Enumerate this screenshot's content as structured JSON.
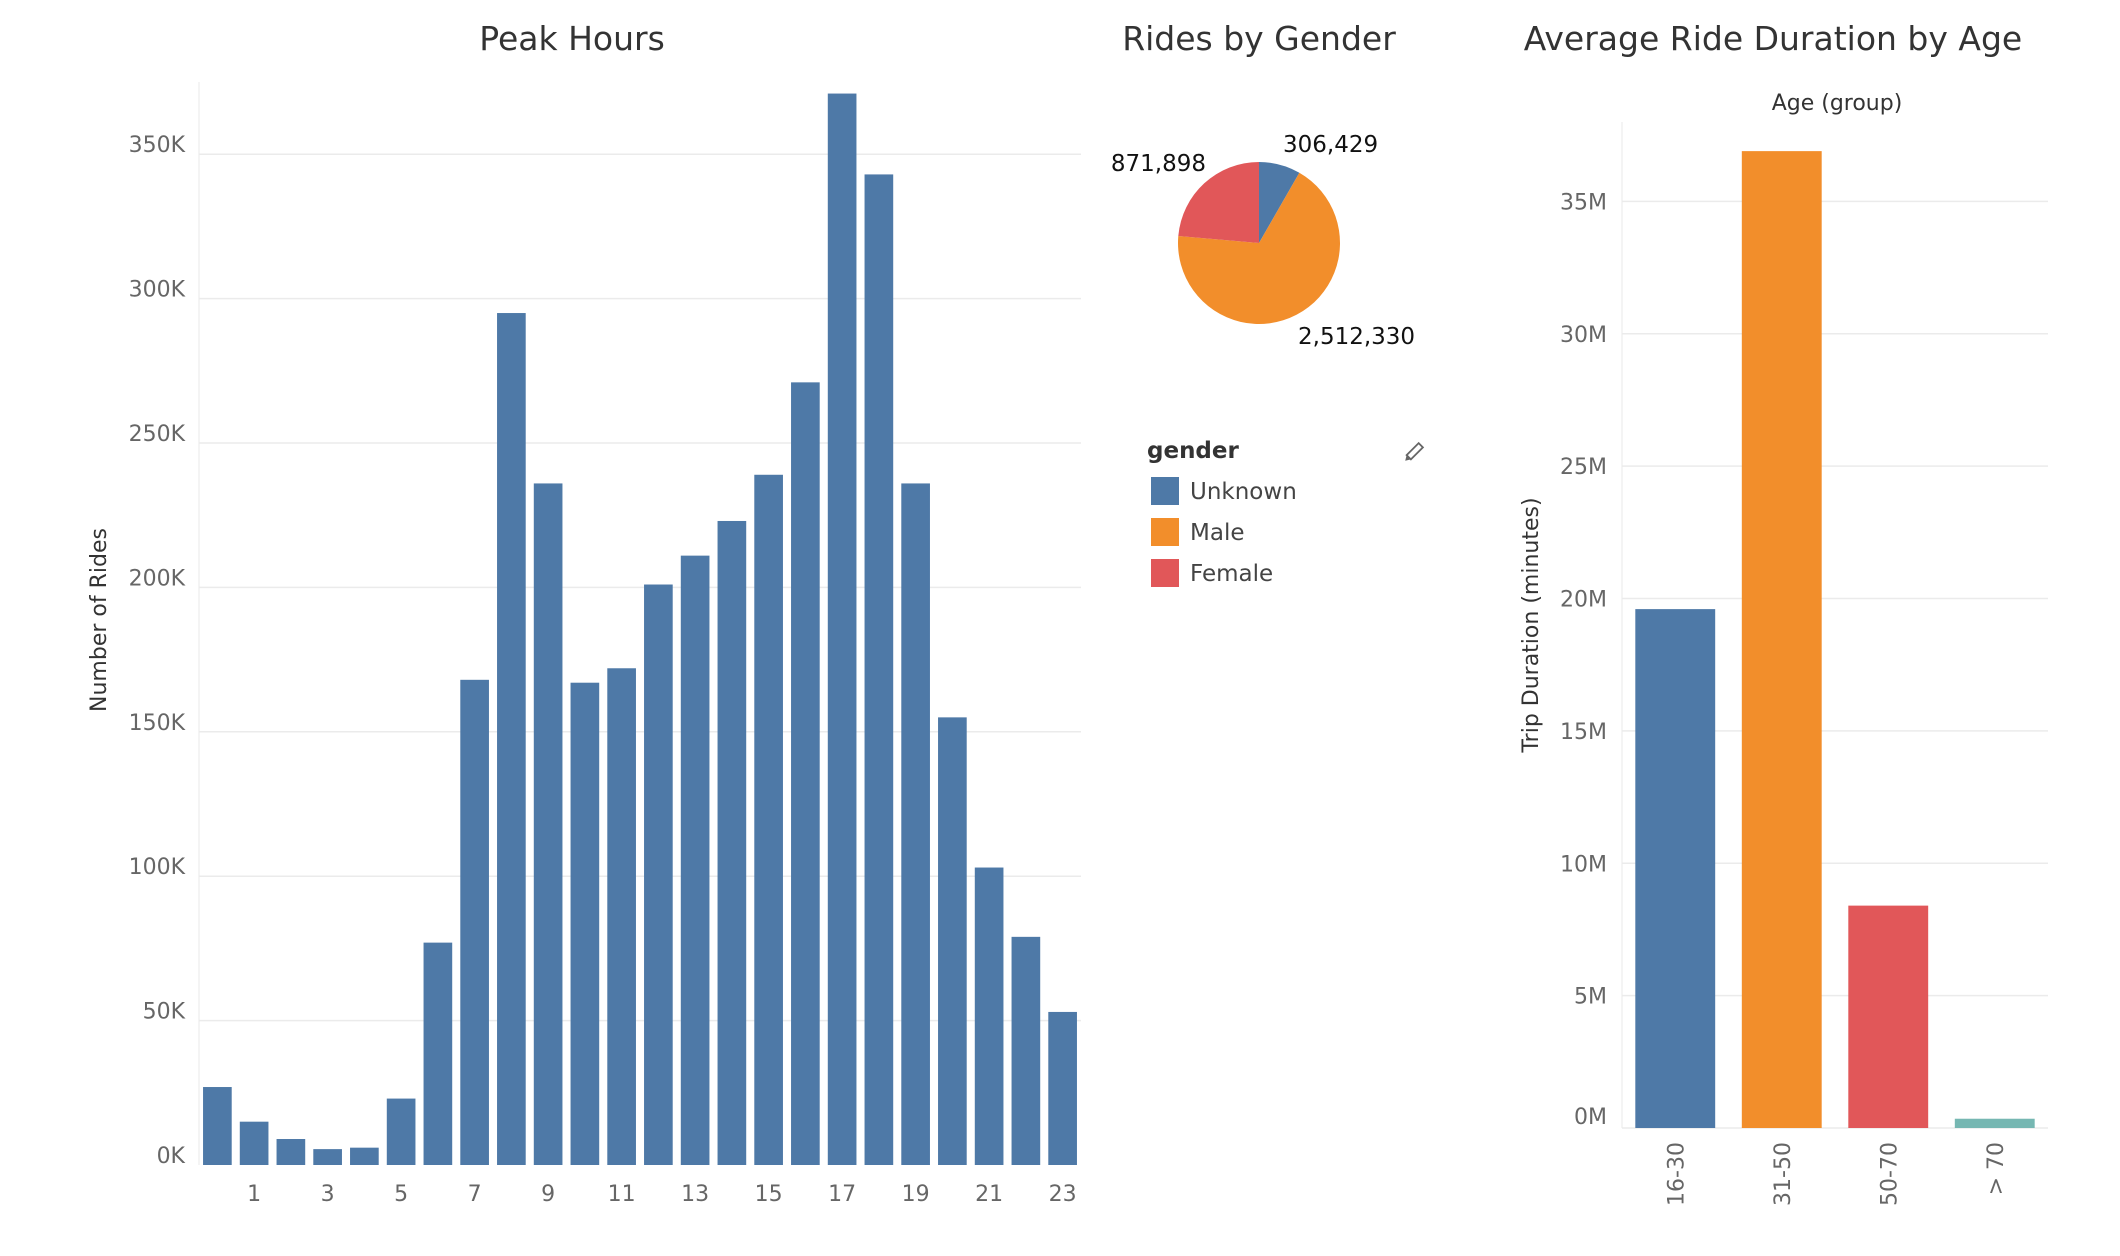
{
  "chart_data": [
    {
      "type": "bar",
      "title": "Peak Hours",
      "ylabel": "Number of Rides",
      "xlabel": "",
      "categories": [
        0,
        1,
        2,
        3,
        4,
        5,
        6,
        7,
        8,
        9,
        10,
        11,
        12,
        13,
        14,
        15,
        16,
        17,
        18,
        19,
        20,
        21,
        22,
        23
      ],
      "x_tick_labels": [
        "1",
        "3",
        "5",
        "7",
        "9",
        "11",
        "13",
        "15",
        "17",
        "19",
        "21",
        "23"
      ],
      "values": [
        27000,
        15000,
        9000,
        5500,
        6000,
        23000,
        77000,
        168000,
        295000,
        236000,
        167000,
        172000,
        201000,
        211000,
        223000,
        239000,
        271000,
        371000,
        343000,
        236000,
        155000,
        103000,
        79000,
        53000
      ],
      "y_ticks": [
        "0K",
        "50K",
        "100K",
        "150K",
        "200K",
        "250K",
        "300K",
        "350K"
      ],
      "ylim": [
        0,
        375000
      ],
      "color": "#4e79a7",
      "grid": true
    },
    {
      "type": "pie",
      "title": "Rides by Gender",
      "slices": [
        {
          "label": "Unknown",
          "value": 306429,
          "display": "306,429",
          "color": "#4e79a7"
        },
        {
          "label": "Male",
          "value": 2512330,
          "display": "2,512,330",
          "color": "#f28e2b"
        },
        {
          "label": "Female",
          "value": 871898,
          "display": "871,898",
          "color": "#e15759"
        }
      ],
      "legend": {
        "title": "gender",
        "placement": "below"
      }
    },
    {
      "type": "bar",
      "title": "Average Ride Duration by Age",
      "header": "Age (group)",
      "ylabel": "Trip Duration (minutes)",
      "xlabel": "",
      "categories": [
        "16-30",
        "31-50",
        "50-70",
        "> 70"
      ],
      "values": [
        19600000,
        36900000,
        8400000,
        350000
      ],
      "colors": [
        "#4e79a7",
        "#f28e2b",
        "#e15759",
        "#76b7b2"
      ],
      "y_ticks": [
        "0M",
        "5M",
        "10M",
        "15M",
        "20M",
        "25M",
        "30M",
        "35M"
      ],
      "ylim": [
        0,
        38000000
      ],
      "grid": true
    }
  ]
}
